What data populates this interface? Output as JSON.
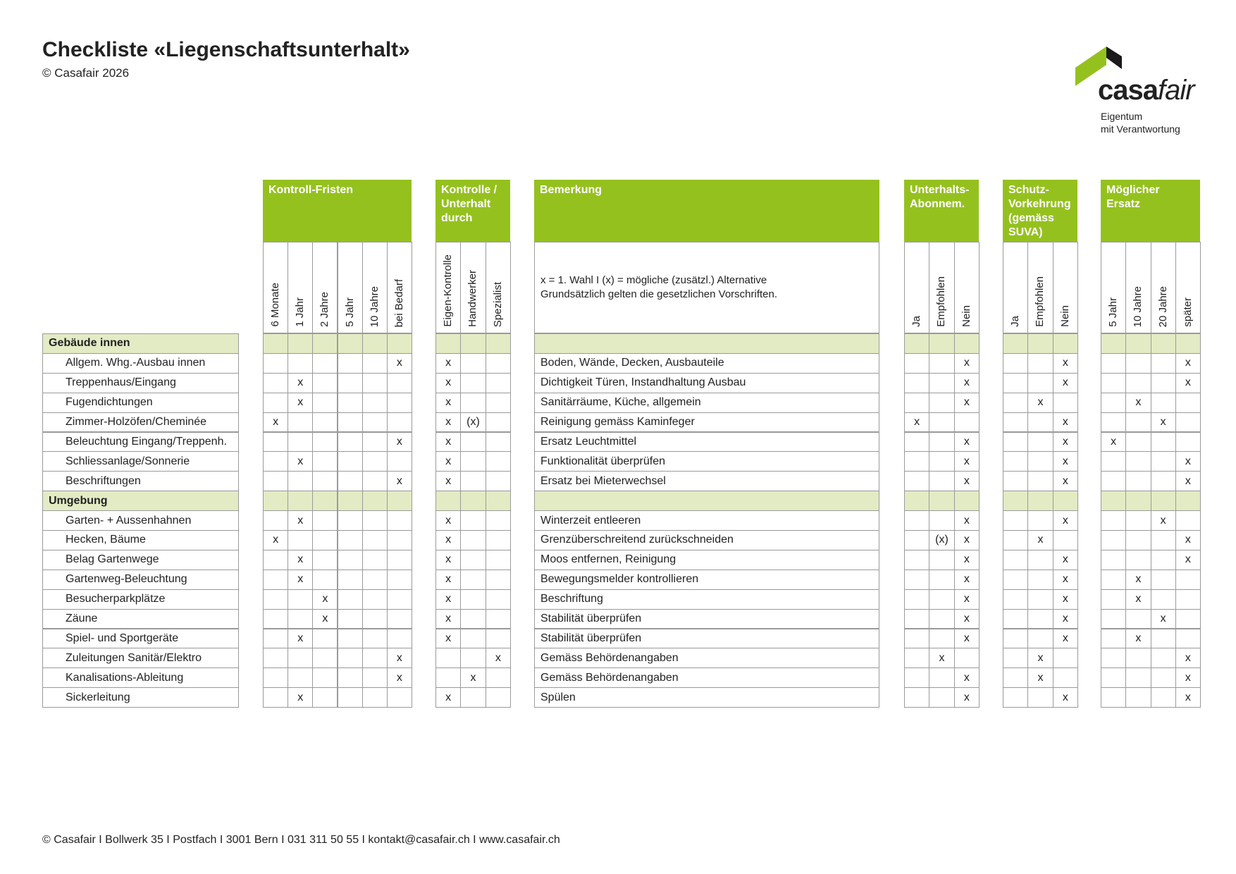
{
  "header": {
    "title": "Checkliste «Liegenschaftsunterhalt»",
    "copyright": "© Casafair 2026"
  },
  "logo": {
    "name_a": "casa",
    "name_b": "fair",
    "tagline": [
      "Eigentum",
      "mit Verantwortung"
    ]
  },
  "groups": [
    {
      "title": "Kontroll-Fristen",
      "columns": [
        "6 Monate",
        "1 Jahr",
        "2 Jahre",
        "5 Jahr",
        "10 Jahre",
        "bei Bedarf"
      ]
    },
    {
      "title": "Kontrolle / Unterhalt durch",
      "columns": [
        "Eigen-Kontrolle",
        "Handwerker",
        "Spezialist"
      ]
    },
    {
      "title": "Bemerkung",
      "legend": [
        "x = 1. Wahl I (x) = mögliche (zusätzl.) Alternative",
        "Grundsätzlich gelten die gesetzlichen Vorschriften."
      ]
    },
    {
      "title": "Unterhalts-Abonnem.",
      "columns": [
        "Ja",
        "Empfohlen",
        "Nein"
      ]
    },
    {
      "title": "Schutz-Vorkehrung (gemäss SUVA)",
      "columns": [
        "Ja",
        "Empfohlen",
        "Nein"
      ]
    },
    {
      "title": "Möglicher Ersatz",
      "columns": [
        "5 Jahr",
        "10 Jahre",
        "20 Jahre",
        "später"
      ]
    }
  ],
  "sections": [
    {
      "name": "Gebäude innen",
      "rows": [
        {
          "label": "Allgem. Whg.-Ausbau innen",
          "remark": "Boden, Wände, Decken, Ausbauteile",
          "marks": [
            null,
            null,
            null,
            null,
            null,
            "x",
            "x",
            null,
            null,
            null,
            null,
            "x",
            null,
            null,
            "x",
            null,
            null,
            null,
            "x"
          ]
        },
        {
          "label": "Treppenhaus/Eingang",
          "remark": "Dichtigkeit Türen, Instandhaltung Ausbau",
          "marks": [
            null,
            "x",
            null,
            null,
            null,
            null,
            "x",
            null,
            null,
            null,
            null,
            "x",
            null,
            null,
            "x",
            null,
            null,
            null,
            "x"
          ]
        },
        {
          "label": "Fugendichtungen",
          "remark": "Sanitärräume, Küche, allgemein",
          "marks": [
            null,
            "x",
            null,
            null,
            null,
            null,
            "x",
            null,
            null,
            null,
            null,
            "x",
            null,
            "x",
            null,
            null,
            "x",
            null,
            null
          ]
        },
        {
          "label": "Zimmer-Holzöfen/Cheminée",
          "remark": "Reinigung gemäss Kaminfeger",
          "marks": [
            "x",
            null,
            null,
            null,
            null,
            null,
            "x",
            "(x)",
            null,
            "x",
            null,
            null,
            null,
            null,
            "x",
            null,
            null,
            "x",
            null
          ]
        },
        {
          "label": "Beleuchtung Eingang/Treppenh.",
          "remark": "Ersatz Leuchtmittel",
          "marks": [
            null,
            null,
            null,
            null,
            null,
            "x",
            "x",
            null,
            null,
            null,
            null,
            "x",
            null,
            null,
            "x",
            "x",
            null,
            null,
            null
          ]
        },
        {
          "label": "Schliessanlage/Sonnerie",
          "remark": "Funktionalität überprüfen",
          "marks": [
            null,
            "x",
            null,
            null,
            null,
            null,
            "x",
            null,
            null,
            null,
            null,
            "x",
            null,
            null,
            "x",
            null,
            null,
            null,
            "x"
          ]
        },
        {
          "label": "Beschriftungen",
          "remark": "Ersatz bei Mieterwechsel",
          "marks": [
            null,
            null,
            null,
            null,
            null,
            "x",
            "x",
            null,
            null,
            null,
            null,
            "x",
            null,
            null,
            "x",
            null,
            null,
            null,
            "x"
          ]
        }
      ]
    },
    {
      "name": "Umgebung",
      "rows": [
        {
          "label": "Garten- + Aussenhahnen",
          "remark": "Winterzeit entleeren",
          "marks": [
            null,
            "x",
            null,
            null,
            null,
            null,
            "x",
            null,
            null,
            null,
            null,
            "x",
            null,
            null,
            "x",
            null,
            null,
            "x",
            null
          ]
        },
        {
          "label": "Hecken, Bäume",
          "remark": "Grenzüberschreitend zurückschneiden",
          "marks": [
            "x",
            null,
            null,
            null,
            null,
            null,
            "x",
            null,
            null,
            null,
            "(x)",
            "x",
            null,
            "x",
            null,
            null,
            null,
            null,
            "x"
          ]
        },
        {
          "label": "Belag Gartenwege",
          "remark": "Moos entfernen, Reinigung",
          "marks": [
            null,
            "x",
            null,
            null,
            null,
            null,
            "x",
            null,
            null,
            null,
            null,
            "x",
            null,
            null,
            "x",
            null,
            null,
            null,
            "x"
          ]
        },
        {
          "label": "Gartenweg-Beleuchtung",
          "remark": "Bewegungsmelder kontrollieren",
          "marks": [
            null,
            "x",
            null,
            null,
            null,
            null,
            "x",
            null,
            null,
            null,
            null,
            "x",
            null,
            null,
            "x",
            null,
            "x",
            null,
            null
          ]
        },
        {
          "label": "Besucherparkplätze",
          "remark": "Beschriftung",
          "marks": [
            null,
            null,
            "x",
            null,
            null,
            null,
            "x",
            null,
            null,
            null,
            null,
            "x",
            null,
            null,
            "x",
            null,
            "x",
            null,
            null
          ]
        },
        {
          "label": "Zäune",
          "remark": "Stabilität überprüfen",
          "marks": [
            null,
            null,
            "x",
            null,
            null,
            null,
            "x",
            null,
            null,
            null,
            null,
            "x",
            null,
            null,
            "x",
            null,
            null,
            "x",
            null
          ]
        },
        {
          "label": "Spiel- und Sportgeräte",
          "remark": "Stabilität überprüfen",
          "marks": [
            null,
            "x",
            null,
            null,
            null,
            null,
            "x",
            null,
            null,
            null,
            null,
            "x",
            null,
            null,
            "x",
            null,
            "x",
            null,
            null
          ]
        },
        {
          "label": "Zuleitungen Sanitär/Elektro",
          "remark": "Gemäss Behördenangaben",
          "marks": [
            null,
            null,
            null,
            null,
            null,
            "x",
            null,
            null,
            "x",
            null,
            "x",
            null,
            null,
            "x",
            null,
            null,
            null,
            null,
            "x"
          ]
        },
        {
          "label": "Kanalisations-Ableitung",
          "remark": "Gemäss Behördenangaben",
          "marks": [
            null,
            null,
            null,
            null,
            null,
            "x",
            null,
            "x",
            null,
            null,
            null,
            "x",
            null,
            "x",
            null,
            null,
            null,
            null,
            "x"
          ]
        },
        {
          "label": "Sickerleitung",
          "remark": "Spülen",
          "marks": [
            null,
            "x",
            null,
            null,
            null,
            null,
            "x",
            null,
            null,
            null,
            null,
            "x",
            null,
            null,
            "x",
            null,
            null,
            null,
            "x"
          ]
        }
      ]
    }
  ],
  "footer": "© Casafair I Bollwerk 35 I Postfach I 3001 Bern I 031 311 50 55 I kontakt@casafair.ch I www.casafair.ch"
}
